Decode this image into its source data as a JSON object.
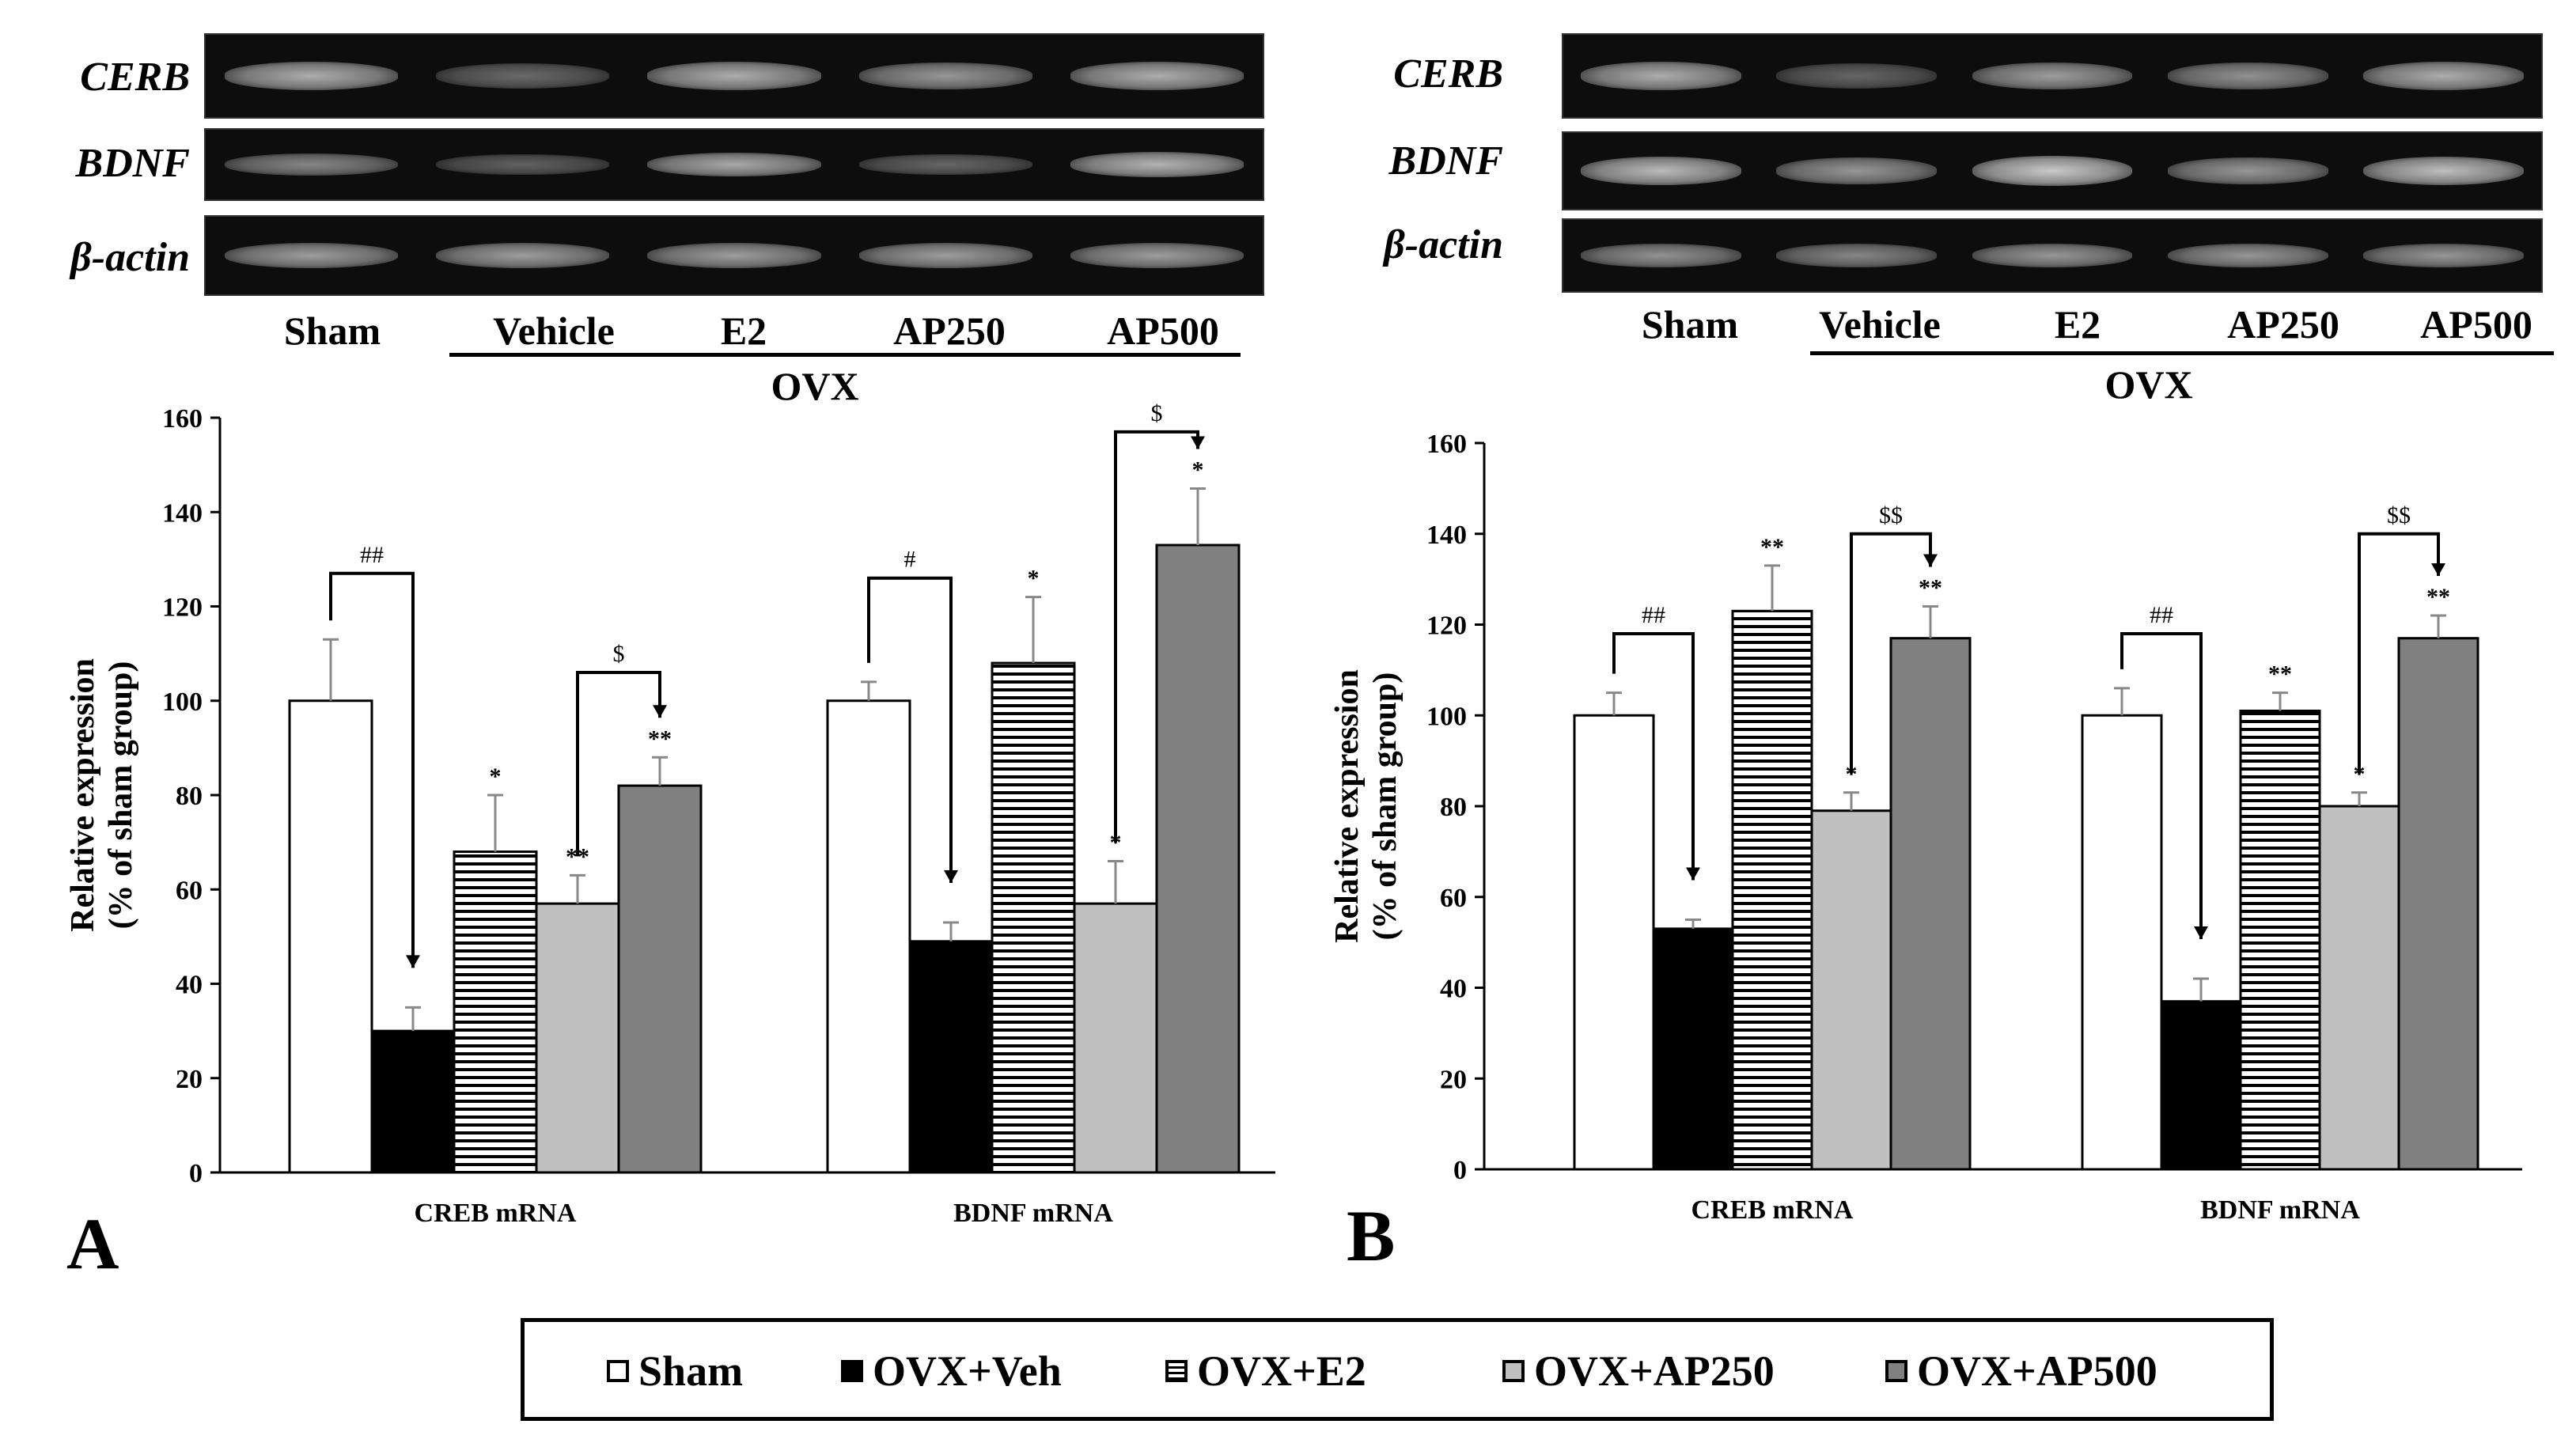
{
  "panels": [
    {
      "letter": "A",
      "blot": {
        "genes": [
          "CERB",
          "BDNF",
          "β-actin"
        ],
        "lanes": [
          "Sham",
          "Vehicle",
          "E2",
          "AP250",
          "AP500"
        ],
        "group_label": "OVX"
      }
    },
    {
      "letter": "B",
      "blot": {
        "genes": [
          "CERB",
          "BDNF",
          "β-actin"
        ],
        "lanes": [
          "Sham",
          "Vehicle",
          "E2",
          "AP250",
          "AP500"
        ],
        "group_label": "OVX"
      }
    }
  ],
  "legend": {
    "items": [
      {
        "label": "Sham",
        "pattern": "white"
      },
      {
        "label": "OVX+Veh",
        "pattern": "black"
      },
      {
        "label": "OVX+E2",
        "pattern": "hstripes"
      },
      {
        "label": "OVX+AP250",
        "pattern": "lightgray"
      },
      {
        "label": "OVX+AP500",
        "pattern": "darkgray"
      }
    ]
  },
  "colors": {
    "sham": "#ffffff",
    "veh": "#000000",
    "e2_stripe": "#000000",
    "ap250": "#c0c0c0",
    "ap500": "#808080",
    "gel_bg": "#0d0d0d",
    "band": "#e0e0e0"
  },
  "chart_data": [
    {
      "panel": "A",
      "type": "bar",
      "categories": [
        "CREB mRNA",
        "BDNF mRNA"
      ],
      "ylabel_line1": "Relative  expression",
      "ylabel_line2": "(% of sham group)",
      "ylim": [
        0,
        160
      ],
      "yticks": [
        0,
        20,
        40,
        60,
        80,
        100,
        120,
        140,
        160
      ],
      "series": [
        {
          "name": "Sham",
          "values": [
            100,
            100
          ],
          "errors": [
            13,
            4
          ],
          "stars": [
            "",
            ""
          ]
        },
        {
          "name": "OVX+Veh",
          "values": [
            30,
            49
          ],
          "errors": [
            5,
            4
          ],
          "stars": [
            "",
            ""
          ]
        },
        {
          "name": "OVX+E2",
          "values": [
            68,
            108
          ],
          "errors": [
            12,
            14
          ],
          "stars": [
            "*",
            "*"
          ]
        },
        {
          "name": "OVX+AP250",
          "values": [
            57,
            57
          ],
          "errors": [
            6,
            9
          ],
          "stars": [
            "**",
            "*"
          ]
        },
        {
          "name": "OVX+AP500",
          "values": [
            82,
            133
          ],
          "errors": [
            6,
            12
          ],
          "stars": [
            "**",
            "*"
          ]
        }
      ],
      "brackets": [
        {
          "category": 0,
          "from": 0,
          "to": 1,
          "y": 127,
          "label": "##"
        },
        {
          "category": 0,
          "from": 3,
          "to": 4,
          "y": 106,
          "label": "$"
        },
        {
          "category": 1,
          "from": 0,
          "to": 1,
          "y": 126,
          "label": "#"
        },
        {
          "category": 1,
          "from": 3,
          "to": 4,
          "y": 157,
          "label": "$"
        }
      ]
    },
    {
      "panel": "B",
      "type": "bar",
      "categories": [
        "CREB mRNA",
        "BDNF mRNA"
      ],
      "ylabel_line1": "Relative  expression",
      "ylabel_line2": "(% of sham group)",
      "ylim": [
        0,
        160
      ],
      "yticks": [
        0,
        20,
        40,
        60,
        80,
        100,
        120,
        140,
        160
      ],
      "series": [
        {
          "name": "Sham",
          "values": [
            100,
            100
          ],
          "errors": [
            5,
            6
          ],
          "stars": [
            "",
            ""
          ]
        },
        {
          "name": "OVX+Veh",
          "values": [
            53,
            37
          ],
          "errors": [
            2,
            5
          ],
          "stars": [
            "",
            ""
          ]
        },
        {
          "name": "OVX+E2",
          "values": [
            123,
            101
          ],
          "errors": [
            10,
            4
          ],
          "stars": [
            "**",
            "**"
          ]
        },
        {
          "name": "OVX+AP250",
          "values": [
            79,
            80
          ],
          "errors": [
            4,
            3
          ],
          "stars": [
            "*",
            "*"
          ]
        },
        {
          "name": "OVX+AP500",
          "values": [
            117,
            117
          ],
          "errors": [
            7,
            5
          ],
          "stars": [
            "**",
            "**"
          ]
        }
      ],
      "brackets": [
        {
          "category": 0,
          "from": 0,
          "to": 1,
          "y": 118,
          "label": "##"
        },
        {
          "category": 0,
          "from": 3,
          "to": 4,
          "y": 140,
          "label": "$$"
        },
        {
          "category": 1,
          "from": 0,
          "to": 1,
          "y": 118,
          "label": "##"
        },
        {
          "category": 1,
          "from": 3,
          "to": 4,
          "y": 140,
          "label": "$$"
        }
      ]
    }
  ]
}
